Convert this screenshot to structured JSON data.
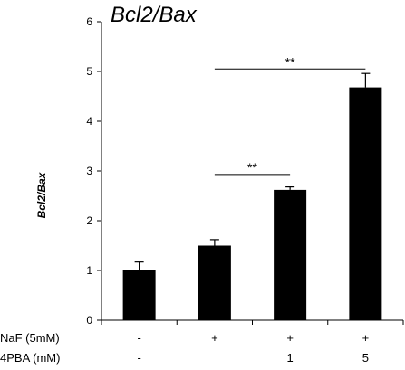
{
  "chart_data": {
    "type": "bar",
    "title": "Bcl2/Bax",
    "ylabel": "Bcl2/Bax",
    "xlabel": "",
    "ylim": [
      0,
      6
    ],
    "yticks": [
      "0",
      "1",
      "2",
      "3",
      "4",
      "5",
      "6"
    ],
    "values": [
      1.0,
      1.5,
      2.62,
      4.68
    ],
    "errors": [
      0.17,
      0.12,
      0.06,
      0.28
    ],
    "bar_color": "#000000",
    "conditions": [
      {
        "label": "NaF (5mM)",
        "values": [
          "-",
          "+",
          "+",
          "+"
        ]
      },
      {
        "label": "4PBA (mM)",
        "values": [
          "-",
          "",
          "1",
          "5"
        ]
      }
    ],
    "significance": [
      {
        "from": 1,
        "to": 2,
        "y": 2.93,
        "label": "**"
      },
      {
        "from": 1,
        "to": 3,
        "y": 5.05,
        "label": "**"
      }
    ]
  }
}
